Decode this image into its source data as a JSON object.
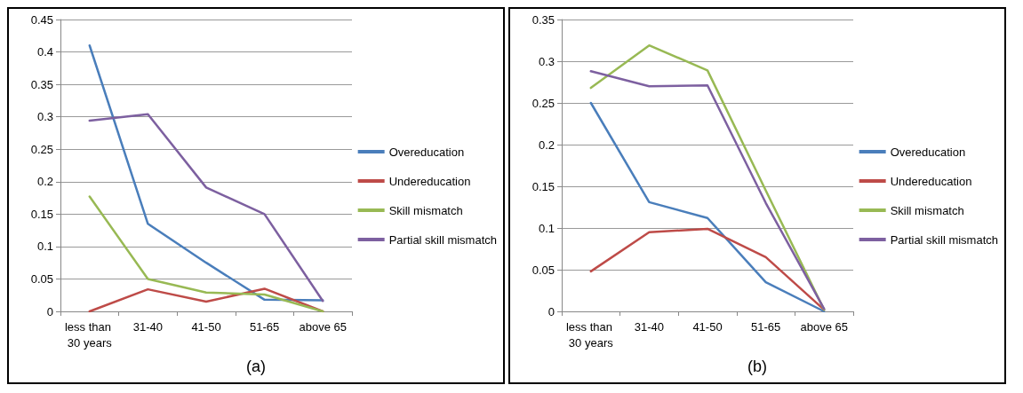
{
  "chart_data": [
    {
      "type": "line",
      "title": "(a)",
      "categories": [
        "less than 30 years",
        "31-40",
        "41-50",
        "51-65",
        "above 65"
      ],
      "series": [
        {
          "name": "Overeducation",
          "color": "#4a7ebb",
          "values": [
            0.41,
            0.135,
            0.075,
            0.018,
            0.017
          ]
        },
        {
          "name": "Undereducation",
          "color": "#be4b48",
          "values": [
            0,
            0.034,
            0.015,
            0.035,
            0
          ]
        },
        {
          "name": "Skill mismatch",
          "color": "#98b954",
          "values": [
            0.177,
            0.05,
            0.029,
            0.026,
            0
          ]
        },
        {
          "name": "Partial skill mismatch",
          "color": "#7d60a0",
          "values": [
            0.294,
            0.304,
            0.191,
            0.15,
            0.016
          ]
        }
      ],
      "ylim": [
        0,
        0.45
      ],
      "yticks": [
        0,
        0.05,
        0.1,
        0.15,
        0.2,
        0.25,
        0.3,
        0.35,
        0.4,
        0.45
      ],
      "grid": "y",
      "legend": "right",
      "marker": "none",
      "line_style": "solid"
    },
    {
      "type": "line",
      "title": "(b)",
      "categories": [
        "less than 30 years",
        "31-40",
        "41-50",
        "51-65",
        "above 65"
      ],
      "series": [
        {
          "name": "Overeducation",
          "color": "#4a7ebb",
          "values": [
            0.25,
            0.131,
            0.112,
            0.035,
            0
          ]
        },
        {
          "name": "Undereducation",
          "color": "#be4b48",
          "values": [
            0.048,
            0.095,
            0.099,
            0.065,
            0.002
          ]
        },
        {
          "name": "Skill mismatch",
          "color": "#98b954",
          "values": [
            0.268,
            0.319,
            0.289,
            0.145,
            0.002
          ]
        },
        {
          "name": "Partial skill mismatch",
          "color": "#7d60a0",
          "values": [
            0.288,
            0.27,
            0.271,
            0.13,
            0.003
          ]
        }
      ],
      "ylim": [
        0,
        0.35
      ],
      "yticks": [
        0,
        0.05,
        0.1,
        0.15,
        0.2,
        0.25,
        0.3,
        0.35
      ],
      "grid": "y",
      "legend": "right",
      "marker": "none",
      "line_style": "solid"
    }
  ]
}
